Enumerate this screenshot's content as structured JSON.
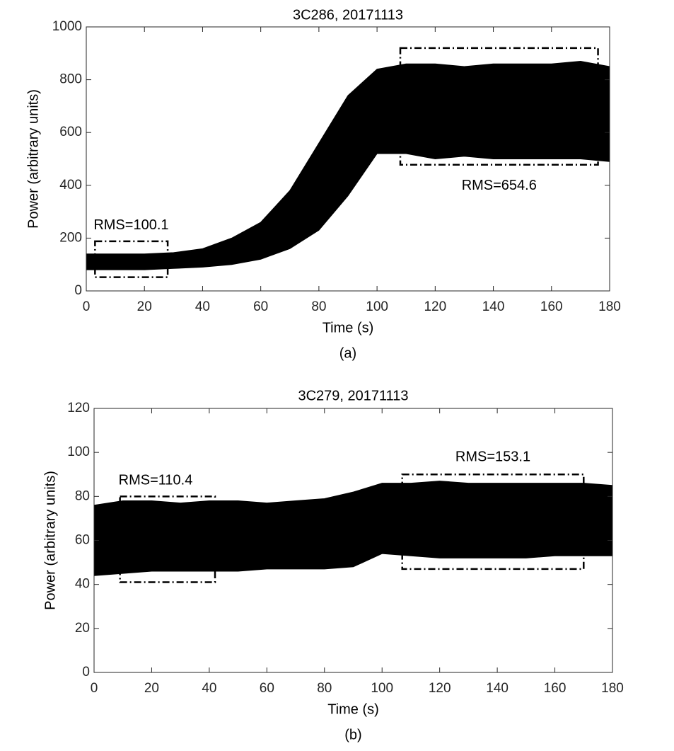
{
  "chart_data": [
    {
      "type": "band",
      "title": "3C286, 20171113",
      "x_label": "Time (s)",
      "y_label": "Power (arbitrary units)",
      "caption": "(a)",
      "x": [
        0,
        10,
        20,
        30,
        40,
        50,
        60,
        70,
        80,
        90,
        100,
        110,
        120,
        130,
        140,
        150,
        160,
        170,
        180
      ],
      "series": [
        {
          "color": "#000000",
          "values": [
            140,
            140,
            140,
            145,
            160,
            200,
            260,
            380,
            560,
            740,
            840,
            860,
            860,
            850,
            860,
            860,
            860,
            870,
            850
          ]
        },
        {
          "color": "#000000",
          "values": [
            80,
            80,
            80,
            85,
            90,
            100,
            120,
            160,
            230,
            360,
            520,
            520,
            500,
            510,
            500,
            500,
            500,
            500,
            490
          ]
        }
      ],
      "xlim": [
        0,
        180
      ],
      "ylim": [
        0,
        1000
      ],
      "xticks": [
        0,
        20,
        40,
        60,
        80,
        100,
        120,
        140,
        160,
        180
      ],
      "yticks": [
        0,
        200,
        400,
        600,
        800,
        1000
      ],
      "annotations": [
        {
          "text": "RMS=100.1",
          "xrange": [
            3,
            28
          ],
          "yrange": [
            52,
            188
          ],
          "label_side": "above-left"
        },
        {
          "text": "RMS=654.6",
          "xrange": [
            108,
            176
          ],
          "yrange": [
            478,
            920
          ],
          "label_side": "below"
        }
      ]
    },
    {
      "type": "band",
      "title": "3C279, 20171113",
      "x_label": "Time (s)",
      "y_label": "Power (arbitrary units)",
      "caption": "(b)",
      "x": [
        0,
        10,
        20,
        30,
        40,
        50,
        60,
        70,
        80,
        90,
        100,
        110,
        120,
        130,
        140,
        150,
        160,
        170,
        180
      ],
      "series": [
        {
          "color": "#000000",
          "values": [
            76,
            78,
            78,
            77,
            78,
            78,
            77,
            78,
            79,
            82,
            86,
            86,
            87,
            86,
            86,
            86,
            86,
            86,
            85
          ]
        },
        {
          "color": "#000000",
          "values": [
            44,
            45,
            46,
            46,
            46,
            46,
            47,
            47,
            47,
            48,
            54,
            53,
            52,
            52,
            52,
            52,
            53,
            53,
            53
          ]
        }
      ],
      "xlim": [
        0,
        180
      ],
      "ylim": [
        0,
        120
      ],
      "xticks": [
        0,
        20,
        40,
        60,
        80,
        100,
        120,
        140,
        160,
        180
      ],
      "yticks": [
        0,
        20,
        40,
        60,
        80,
        100,
        120
      ],
      "annotations": [
        {
          "text": "RMS=110.4",
          "xrange": [
            9,
            42
          ],
          "yrange": [
            41,
            80
          ],
          "label_side": "above-left"
        },
        {
          "text": "RMS=153.1",
          "xrange": [
            107,
            170
          ],
          "yrange": [
            47,
            90
          ],
          "label_side": "above"
        }
      ]
    }
  ]
}
